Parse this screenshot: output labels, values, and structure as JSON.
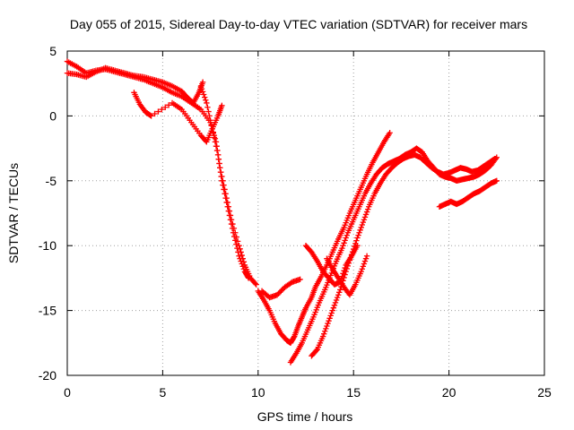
{
  "chart_data": {
    "type": "scatter",
    "title": "Day 055 of 2015, Sidereal Day-to-day VTEC variation (SDTVAR) for receiver mars",
    "xlabel": "GPS time / hours",
    "ylabel": "SDTVAR / TECUs",
    "xlim": [
      0,
      25
    ],
    "ylim": [
      -20,
      5
    ],
    "xticks": [
      0,
      5,
      10,
      15,
      20,
      25
    ],
    "yticks": [
      5,
      0,
      -5,
      -10,
      -15,
      -20
    ],
    "grid": true,
    "legend": "none",
    "marker": "plus",
    "color": "#ff0000",
    "series": [
      {
        "x": [
          0.0,
          0.5,
          1.0,
          1.5,
          2.0,
          2.5,
          3.0,
          3.5,
          4.0,
          4.5,
          5.0,
          5.5,
          6.0,
          6.5,
          7.0,
          7.5,
          7.8,
          8.0,
          8.3,
          8.6,
          9.0,
          9.3,
          9.6,
          9.9
        ],
        "y": [
          4.2,
          3.8,
          3.3,
          3.5,
          3.6,
          3.4,
          3.2,
          3.0,
          2.8,
          2.5,
          2.2,
          1.8,
          1.5,
          1.0,
          0.5,
          -0.5,
          -2.0,
          -4.0,
          -6.0,
          -8.0,
          -10.0,
          -11.5,
          -12.5,
          -13.0
        ]
      },
      {
        "x": [
          0.0,
          0.5,
          1.0,
          1.5,
          2.0,
          2.5,
          3.0,
          3.5,
          4.0,
          4.5,
          5.0,
          5.5,
          6.0,
          6.3,
          6.6,
          6.9,
          7.1
        ],
        "y": [
          3.3,
          3.2,
          3.0,
          3.4,
          3.7,
          3.5,
          3.3,
          3.1,
          3.0,
          2.8,
          2.6,
          2.3,
          1.9,
          1.4,
          1.0,
          1.8,
          2.6
        ]
      },
      {
        "x": [
          3.5,
          3.8,
          4.1,
          4.4,
          5.5,
          6.0,
          6.5,
          7.0,
          7.3,
          7.6,
          7.9,
          8.1
        ],
        "y": [
          1.8,
          0.9,
          0.3,
          0.0,
          1.0,
          0.5,
          -0.5,
          -1.5,
          -2.0,
          -1.0,
          0.0,
          0.8
        ]
      },
      {
        "x": [
          7.0,
          7.3,
          7.6,
          7.9,
          8.1,
          8.4,
          8.7,
          9.0,
          9.3,
          9.5
        ],
        "y": [
          2.3,
          1.0,
          -1.0,
          -3.0,
          -5.0,
          -7.0,
          -9.0,
          -10.8,
          -12.0,
          -12.5
        ]
      },
      {
        "x": [
          10.0,
          10.3,
          10.6,
          10.9,
          11.2,
          11.5,
          11.7,
          11.9,
          12.1,
          12.3,
          12.5,
          12.8,
          13.0,
          13.3,
          13.6,
          13.9,
          14.2,
          14.5,
          14.8,
          15.1,
          15.4,
          15.7,
          16.0,
          16.3,
          16.6,
          16.9
        ],
        "y": [
          -13.5,
          -14.2,
          -15.0,
          -16.0,
          -16.8,
          -17.3,
          -17.5,
          -17.0,
          -16.2,
          -15.5,
          -14.8,
          -14.0,
          -13.2,
          -12.4,
          -11.5,
          -10.5,
          -9.5,
          -8.6,
          -7.5,
          -6.5,
          -5.5,
          -4.5,
          -3.6,
          -2.8,
          -2.0,
          -1.3
        ]
      },
      {
        "x": [
          10.2,
          10.6,
          11.0,
          11.4,
          11.8,
          12.2
        ],
        "y": [
          -13.5,
          -14.0,
          -13.8,
          -13.2,
          -12.8,
          -12.6
        ]
      },
      {
        "x": [
          11.7,
          12.0,
          12.3,
          12.6,
          12.9,
          13.2,
          13.5,
          13.8,
          14.1,
          14.4,
          14.7,
          15.0,
          15.3,
          15.6,
          15.9,
          16.2,
          16.5,
          16.8,
          17.1,
          17.4,
          17.7,
          18.0,
          18.3,
          18.6,
          18.9,
          19.2,
          19.5,
          19.8,
          20.1,
          20.4,
          20.7,
          21.0,
          21.3,
          21.6,
          21.9,
          22.2,
          22.5
        ],
        "y": [
          -19.0,
          -18.3,
          -17.5,
          -16.5,
          -15.5,
          -14.4,
          -13.4,
          -12.3,
          -11.2,
          -10.2,
          -9.0,
          -8.0,
          -7.0,
          -6.0,
          -5.2,
          -4.5,
          -4.0,
          -3.7,
          -3.5,
          -3.3,
          -3.0,
          -2.8,
          -2.5,
          -2.8,
          -3.5,
          -4.0,
          -4.5,
          -4.7,
          -4.8,
          -5.0,
          -4.9,
          -4.8,
          -4.7,
          -4.5,
          -4.2,
          -3.8,
          -3.2
        ]
      },
      {
        "x": [
          12.8,
          13.1,
          13.4,
          13.7,
          14.0,
          14.3,
          14.6,
          14.9,
          15.2,
          15.5,
          15.8,
          16.1,
          16.4,
          16.7,
          17.0,
          17.3,
          17.6,
          17.9,
          18.2,
          18.5,
          18.8,
          19.1,
          19.4,
          19.7,
          20.0,
          20.3,
          20.6,
          20.9,
          21.2,
          21.5,
          21.8,
          22.1,
          22.4
        ],
        "y": [
          -18.5,
          -18.0,
          -17.0,
          -15.8,
          -14.6,
          -13.4,
          -12.0,
          -10.7,
          -9.4,
          -8.2,
          -7.0,
          -6.0,
          -5.2,
          -4.5,
          -4.0,
          -3.6,
          -3.3,
          -3.1,
          -3.0,
          -3.2,
          -3.6,
          -4.0,
          -4.3,
          -4.5,
          -4.4,
          -4.2,
          -4.0,
          -4.1,
          -4.3,
          -4.2,
          -3.9,
          -3.6,
          -3.3
        ]
      },
      {
        "x": [
          19.5,
          19.8,
          20.1,
          20.4,
          20.7,
          21.0,
          21.3,
          21.6,
          21.9,
          22.2,
          22.5
        ],
        "y": [
          -7.0,
          -6.8,
          -6.6,
          -6.8,
          -6.6,
          -6.3,
          -6.0,
          -5.8,
          -5.5,
          -5.2,
          -5.0
        ]
      },
      {
        "x": [
          12.5,
          12.8,
          13.1,
          13.4,
          13.7,
          14.0,
          14.3,
          14.6,
          14.9,
          15.2
        ],
        "y": [
          -10.0,
          -10.5,
          -11.2,
          -12.0,
          -12.5,
          -13.0,
          -12.8,
          -11.5,
          -10.8,
          -10.0
        ]
      },
      {
        "x": [
          13.6,
          13.9,
          14.2,
          14.5,
          14.8,
          15.1,
          15.4,
          15.7
        ],
        "y": [
          -11.0,
          -11.8,
          -12.5,
          -13.2,
          -13.8,
          -13.0,
          -12.0,
          -10.8
        ]
      }
    ]
  }
}
